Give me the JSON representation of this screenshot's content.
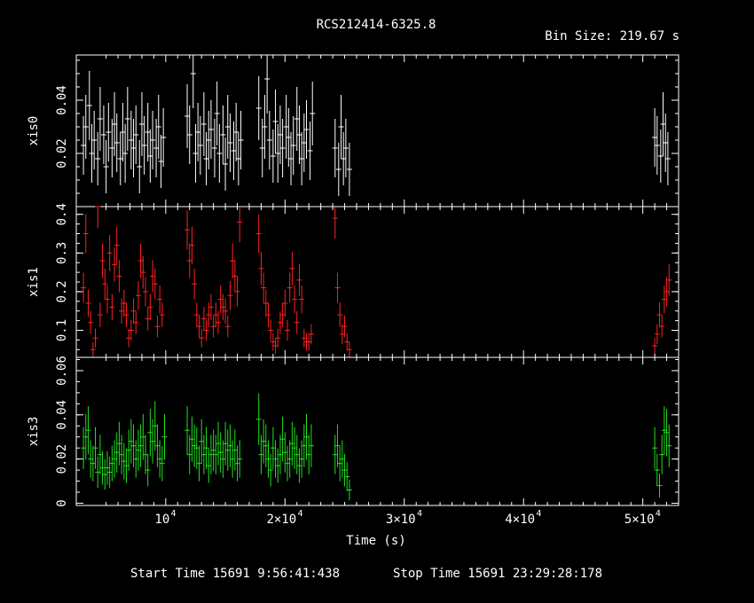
{
  "title": "RCS212414-6325.8",
  "bin_size": "Bin Size: 219.67 s",
  "x_axis": {
    "label": "Time (s)",
    "ticks": [
      {
        "value": 10000,
        "mant": "10",
        "exp": "4"
      },
      {
        "value": 20000,
        "mant": "2×10",
        "exp": "4"
      },
      {
        "value": 30000,
        "mant": "3×10",
        "exp": "4"
      },
      {
        "value": 40000,
        "mant": "4×10",
        "exp": "4"
      },
      {
        "value": 50000,
        "mant": "5×10",
        "exp": "4"
      }
    ]
  },
  "footer": {
    "start": "Start Time 15691  9:56:41:438",
    "stop": "Stop Time 15691 23:29:28:178"
  },
  "colors": {
    "xis0": "#ffffff",
    "xis1": "#ff2020",
    "xis3": "#20e020",
    "axes": "#ffffff",
    "background": "#000000"
  },
  "chart_data": [
    {
      "type": "scatter",
      "panel": "xis0",
      "ylabel": "xis0",
      "xlim": [
        2500,
        53000
      ],
      "ylim": [
        0.0,
        0.057
      ],
      "yticks": [
        {
          "v": 0.02,
          "label": "0.02"
        },
        {
          "v": 0.04,
          "label": "0.04"
        }
      ],
      "x": [
        3100,
        3300,
        3600,
        3800,
        4000,
        4300,
        4500,
        4800,
        5000,
        5200,
        5500,
        5700,
        5900,
        6200,
        6400,
        6600,
        6800,
        7100,
        7300,
        7500,
        7800,
        8000,
        8200,
        8500,
        8700,
        8900,
        9200,
        9400,
        9600,
        9800,
        11800,
        12000,
        12300,
        12500,
        12700,
        12900,
        13200,
        13400,
        13600,
        13800,
        14100,
        14300,
        14500,
        14800,
        15000,
        15200,
        15400,
        15700,
        15900,
        16100,
        16300,
        17800,
        18100,
        18300,
        18500,
        18700,
        19000,
        19200,
        19400,
        19600,
        19800,
        20100,
        20300,
        20500,
        20700,
        21000,
        21200,
        21400,
        21600,
        21800,
        22100,
        22300,
        24200,
        24500,
        24700,
        24900,
        25100,
        25400,
        51000,
        51200,
        51500,
        51700,
        51900,
        52100
      ],
      "y": [
        0.023,
        0.03,
        0.038,
        0.02,
        0.025,
        0.018,
        0.033,
        0.027,
        0.015,
        0.028,
        0.022,
        0.031,
        0.024,
        0.018,
        0.028,
        0.02,
        0.033,
        0.025,
        0.022,
        0.027,
        0.015,
        0.031,
        0.023,
        0.028,
        0.019,
        0.025,
        0.022,
        0.03,
        0.017,
        0.026,
        0.034,
        0.027,
        0.05,
        0.02,
        0.028,
        0.023,
        0.031,
        0.018,
        0.025,
        0.029,
        0.022,
        0.035,
        0.02,
        0.027,
        0.016,
        0.03,
        0.024,
        0.021,
        0.028,
        0.018,
        0.025,
        0.037,
        0.022,
        0.03,
        0.048,
        0.025,
        0.019,
        0.032,
        0.02,
        0.027,
        0.022,
        0.03,
        0.026,
        0.018,
        0.023,
        0.033,
        0.027,
        0.018,
        0.024,
        0.029,
        0.021,
        0.035,
        0.022,
        0.014,
        0.03,
        0.018,
        0.022,
        0.014,
        0.026,
        0.023,
        0.019,
        0.031,
        0.024,
        0.018
      ],
      "err": [
        0.011,
        0.012,
        0.013,
        0.011,
        0.011,
        0.01,
        0.012,
        0.011,
        0.01,
        0.011,
        0.011,
        0.012,
        0.011,
        0.01,
        0.011,
        0.011,
        0.012,
        0.011,
        0.011,
        0.011,
        0.01,
        0.012,
        0.011,
        0.011,
        0.01,
        0.011,
        0.011,
        0.012,
        0.01,
        0.011,
        0.012,
        0.011,
        0.013,
        0.011,
        0.011,
        0.011,
        0.012,
        0.01,
        0.011,
        0.011,
        0.011,
        0.012,
        0.011,
        0.011,
        0.01,
        0.012,
        0.011,
        0.011,
        0.011,
        0.01,
        0.011,
        0.012,
        0.011,
        0.012,
        0.013,
        0.011,
        0.01,
        0.012,
        0.011,
        0.011,
        0.011,
        0.012,
        0.011,
        0.01,
        0.011,
        0.012,
        0.011,
        0.01,
        0.011,
        0.011,
        0.011,
        0.012,
        0.011,
        0.01,
        0.012,
        0.01,
        0.011,
        0.01,
        0.011,
        0.011,
        0.01,
        0.012,
        0.011,
        0.01
      ]
    },
    {
      "type": "scatter",
      "panel": "xis1",
      "ylabel": "xis1",
      "xlim": [
        2500,
        53000
      ],
      "ylim": [
        0.03,
        0.42
      ],
      "yticks": [
        {
          "v": 0.1,
          "label": "0.1"
        },
        {
          "v": 0.2,
          "label": "0.2"
        },
        {
          "v": 0.3,
          "label": "0.3"
        },
        {
          "v": 0.4,
          "label": "0.4"
        }
      ],
      "x": [
        3100,
        3300,
        3500,
        3700,
        3900,
        4100,
        4300,
        4500,
        4700,
        4900,
        5100,
        5300,
        5500,
        5700,
        5900,
        6100,
        6300,
        6500,
        6700,
        6900,
        7100,
        7300,
        7500,
        7700,
        7900,
        8100,
        8300,
        8500,
        8700,
        8900,
        9100,
        9300,
        9500,
        9700,
        11800,
        12000,
        12200,
        12400,
        12600,
        12800,
        13000,
        13200,
        13400,
        13600,
        13800,
        14000,
        14200,
        14400,
        14600,
        14800,
        15000,
        15200,
        15400,
        15600,
        15800,
        16000,
        16200,
        17800,
        18000,
        18200,
        18400,
        18600,
        18800,
        19000,
        19200,
        19400,
        19600,
        19800,
        20000,
        20200,
        20400,
        20600,
        20800,
        21000,
        21200,
        21400,
        21600,
        21800,
        22000,
        22200,
        24200,
        24400,
        24600,
        24800,
        25000,
        25200,
        25400,
        51000,
        51200,
        51400,
        51600,
        51800,
        52000,
        52200
      ],
      "y": [
        0.21,
        0.35,
        0.17,
        0.12,
        0.05,
        0.08,
        0.42,
        0.14,
        0.28,
        0.22,
        0.18,
        0.3,
        0.16,
        0.27,
        0.32,
        0.24,
        0.15,
        0.17,
        0.14,
        0.08,
        0.1,
        0.15,
        0.12,
        0.19,
        0.28,
        0.25,
        0.2,
        0.13,
        0.16,
        0.24,
        0.22,
        0.11,
        0.18,
        0.14,
        0.36,
        0.28,
        0.32,
        0.22,
        0.14,
        0.11,
        0.08,
        0.13,
        0.1,
        0.14,
        0.16,
        0.11,
        0.14,
        0.12,
        0.18,
        0.16,
        0.15,
        0.11,
        0.19,
        0.28,
        0.24,
        0.2,
        0.38,
        0.35,
        0.26,
        0.21,
        0.17,
        0.14,
        0.1,
        0.07,
        0.06,
        0.08,
        0.12,
        0.14,
        0.17,
        0.1,
        0.21,
        0.26,
        0.18,
        0.12,
        0.23,
        0.18,
        0.08,
        0.07,
        0.07,
        0.09,
        0.39,
        0.21,
        0.14,
        0.09,
        0.11,
        0.07,
        0.05,
        0.06,
        0.09,
        0.14,
        0.11,
        0.18,
        0.2,
        0.23
      ]
    },
    {
      "type": "scatter",
      "panel": "xis3",
      "ylabel": "xis3",
      "xlim": [
        2500,
        53000
      ],
      "ylim": [
        -0.001,
        0.066
      ],
      "yticks": [
        {
          "v": 0.0,
          "label": "0"
        },
        {
          "v": 0.02,
          "label": "0.02"
        },
        {
          "v": 0.04,
          "label": "0.04"
        },
        {
          "v": 0.06,
          "label": "0.06"
        }
      ],
      "x": [
        3100,
        3300,
        3500,
        3700,
        3900,
        4100,
        4300,
        4500,
        4700,
        4900,
        5100,
        5300,
        5500,
        5700,
        5900,
        6100,
        6300,
        6500,
        6700,
        6900,
        7100,
        7300,
        7500,
        7700,
        7900,
        8100,
        8300,
        8500,
        8700,
        8900,
        9100,
        9300,
        9500,
        9700,
        9900,
        11800,
        12000,
        12200,
        12400,
        12600,
        12800,
        13000,
        13200,
        13400,
        13600,
        13800,
        14000,
        14200,
        14400,
        14600,
        14800,
        15000,
        15200,
        15400,
        15600,
        15800,
        16000,
        16200,
        17800,
        18000,
        18200,
        18400,
        18600,
        18800,
        19000,
        19200,
        19400,
        19600,
        19800,
        20000,
        20200,
        20400,
        20600,
        20800,
        21000,
        21200,
        21400,
        21600,
        21800,
        22000,
        22200,
        24200,
        24400,
        24600,
        24800,
        25000,
        25200,
        25400,
        51000,
        51200,
        51400,
        51600,
        51800,
        52000,
        52200
      ],
      "y": [
        0.025,
        0.03,
        0.033,
        0.02,
        0.018,
        0.025,
        0.014,
        0.022,
        0.016,
        0.013,
        0.016,
        0.014,
        0.018,
        0.02,
        0.023,
        0.027,
        0.022,
        0.019,
        0.017,
        0.024,
        0.028,
        0.026,
        0.02,
        0.024,
        0.026,
        0.03,
        0.022,
        0.015,
        0.032,
        0.028,
        0.035,
        0.026,
        0.02,
        0.018,
        0.03,
        0.033,
        0.022,
        0.029,
        0.026,
        0.025,
        0.018,
        0.028,
        0.022,
        0.025,
        0.017,
        0.022,
        0.024,
        0.022,
        0.027,
        0.023,
        0.02,
        0.027,
        0.024,
        0.026,
        0.02,
        0.024,
        0.018,
        0.02,
        0.038,
        0.022,
        0.028,
        0.026,
        0.02,
        0.015,
        0.025,
        0.02,
        0.017,
        0.022,
        0.029,
        0.023,
        0.018,
        0.02,
        0.027,
        0.025,
        0.022,
        0.017,
        0.02,
        0.026,
        0.03,
        0.022,
        0.026,
        0.022,
        0.026,
        0.018,
        0.02,
        0.015,
        0.012,
        0.006,
        0.025,
        0.015,
        0.008,
        0.022,
        0.033,
        0.032,
        0.026
      ]
    }
  ]
}
